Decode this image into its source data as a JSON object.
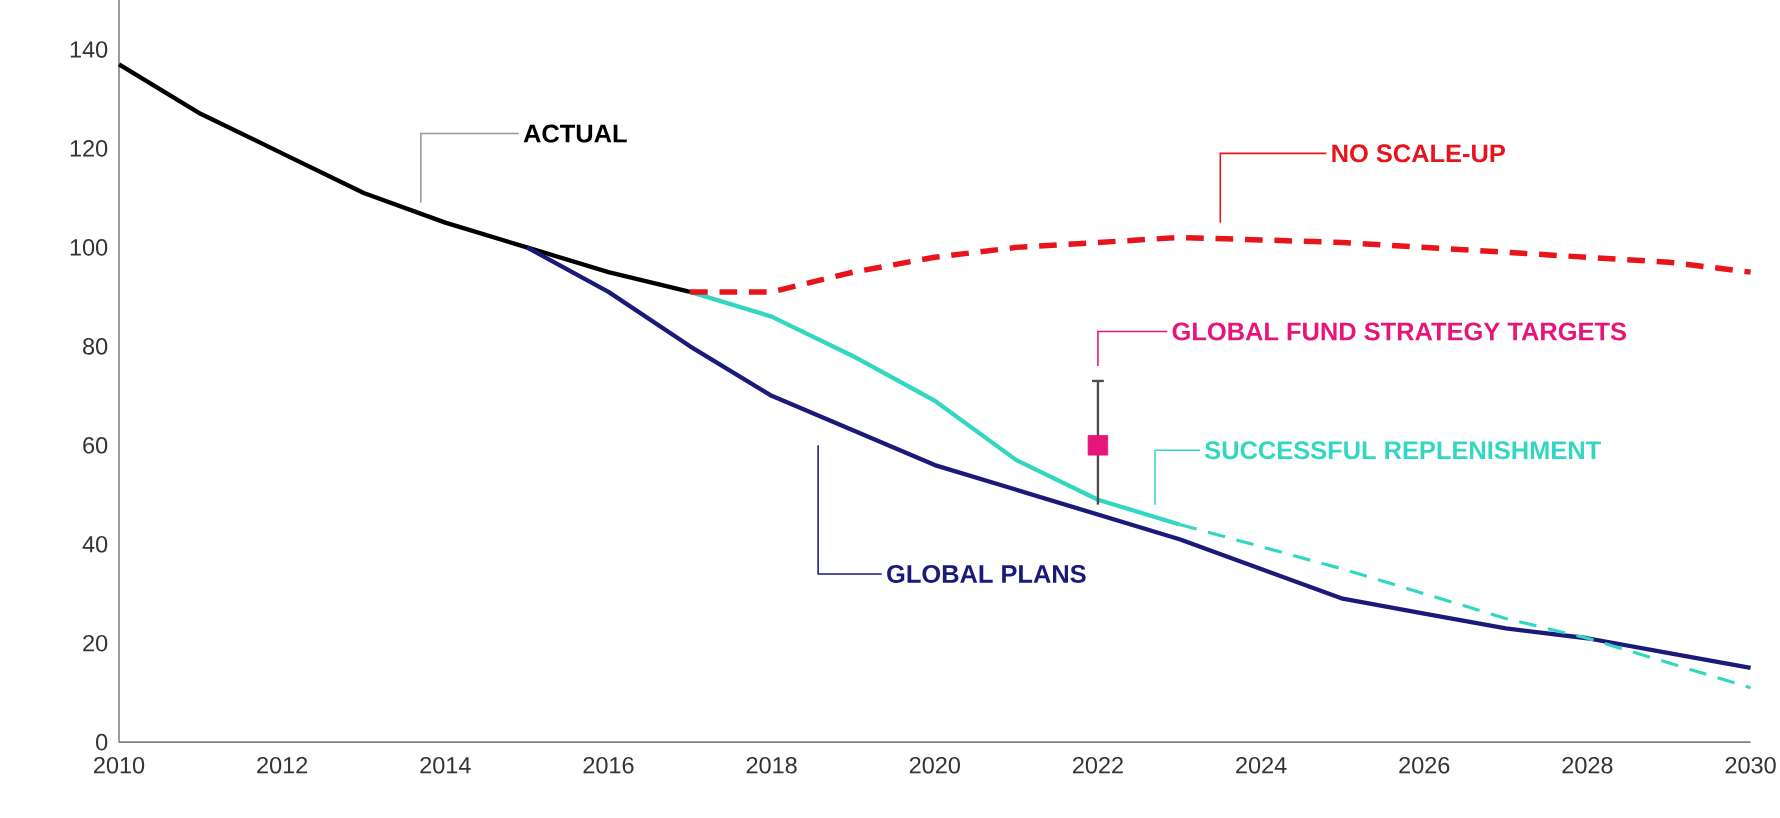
{
  "chart_data": {
    "type": "line",
    "xlim": [
      2010,
      2030
    ],
    "ylim": [
      0,
      150
    ],
    "xticks": [
      2010,
      2012,
      2014,
      2016,
      2018,
      2020,
      2022,
      2024,
      2026,
      2028,
      2030
    ],
    "yticks": [
      0,
      20,
      40,
      60,
      80,
      100,
      120,
      140
    ],
    "series": [
      {
        "name": "ACTUAL",
        "color": "#000000",
        "line_style": "solid",
        "x": [
          2010,
          2011,
          2012,
          2013,
          2014,
          2015,
          2016,
          2017
        ],
        "values": [
          137,
          127,
          119,
          111,
          105,
          100,
          95,
          91
        ]
      },
      {
        "name": "GLOBAL PLANS",
        "color": "#1a1a7a",
        "line_style": "solid",
        "x": [
          2015,
          2016,
          2017,
          2018,
          2019,
          2020,
          2021,
          2022,
          2023,
          2024,
          2025,
          2026,
          2027,
          2028,
          2029,
          2030
        ],
        "values": [
          100,
          91,
          80,
          70,
          63,
          56,
          51,
          46,
          41,
          35,
          29,
          26,
          23,
          21,
          18,
          15
        ]
      },
      {
        "name": "SUCCESSFUL REPLENISHMENT",
        "color": "#33d6c0",
        "line_style": "solid",
        "x": [
          2017,
          2018,
          2019,
          2020,
          2021,
          2022,
          2023
        ],
        "values": [
          91,
          86,
          78,
          69,
          57,
          49,
          44
        ]
      },
      {
        "color": "#33d6c0",
        "line_style": "dashed",
        "x": [
          2023,
          2025,
          2027,
          2028,
          2030
        ],
        "values": [
          44,
          35,
          25,
          21,
          11
        ]
      },
      {
        "name": "NO SCALE-UP",
        "color": "#e8141b",
        "line_style": "dashed",
        "x": [
          2017,
          2018,
          2019,
          2020,
          2021,
          2022,
          2023,
          2024,
          2025,
          2026,
          2027,
          2028,
          2029,
          2030
        ],
        "values": [
          91,
          91,
          95,
          98,
          100,
          101,
          102,
          101.5,
          101,
          100,
          99,
          98,
          97,
          95
        ]
      },
      {
        "name": "GLOBAL FUND STRATEGY TARGETS",
        "type": "scatter",
        "marker": "square",
        "color": "#e6157a",
        "x": [
          2022
        ],
        "values": [
          60
        ],
        "errors": [
          [
            48,
            73
          ]
        ]
      }
    ]
  }
}
